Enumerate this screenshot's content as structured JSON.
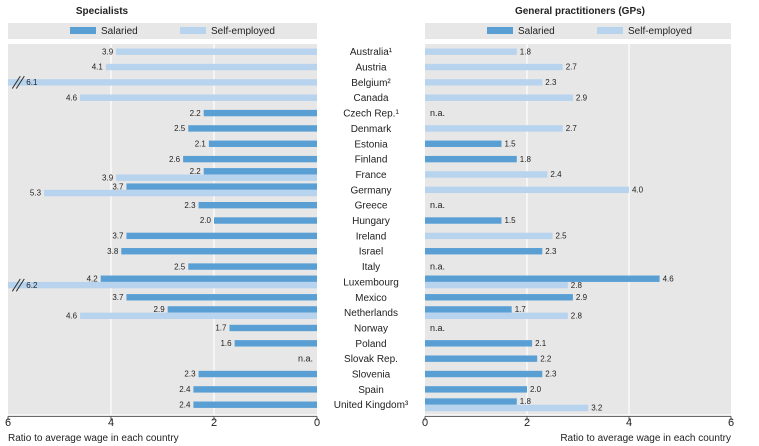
{
  "colors": {
    "salaried": "#5a9fd4",
    "self_employed": "#b7d3ee",
    "panel_bg": "#e7e7e7",
    "grid": "#ffffff",
    "axis": "#555555",
    "text": "#222222"
  },
  "chart_data": [
    {
      "type": "bar",
      "orientation": "horizontal",
      "direction": "right-to-left",
      "title": "Specialists",
      "legend": [
        "Salaried",
        "Self-employed"
      ],
      "legend_position": "top",
      "xlabel": "Ratio to average wage in each country",
      "xlim": [
        0,
        6
      ],
      "xticks": [
        "6",
        "4",
        "2",
        "0"
      ],
      "grid": true,
      "break_mark_value": 5.8,
      "categories": [
        "Australia¹",
        "Austria",
        "Belgium²",
        "Canada",
        "Czech Rep.¹",
        "Denmark",
        "Estonia",
        "Finland",
        "France",
        "Germany",
        "Greece",
        "Hungary",
        "Ireland",
        "Israel",
        "Italy",
        "Luxembourg",
        "Mexico",
        "Netherlands",
        "Norway",
        "Poland",
        "Slovak Rep.",
        "Slovenia",
        "Spain",
        "United Kingdom³"
      ],
      "series": [
        {
          "name": "Salaried",
          "values": [
            null,
            null,
            null,
            null,
            2.2,
            2.5,
            2.1,
            2.6,
            2.2,
            3.7,
            2.3,
            2.0,
            3.7,
            3.8,
            2.5,
            4.2,
            3.7,
            2.9,
            1.7,
            1.6,
            null,
            2.3,
            2.4,
            2.4
          ]
        },
        {
          "name": "Self-employed",
          "values": [
            3.9,
            4.1,
            6.1,
            4.6,
            null,
            null,
            null,
            null,
            3.9,
            5.3,
            null,
            null,
            null,
            null,
            null,
            6.2,
            null,
            4.6,
            null,
            null,
            null,
            null,
            null,
            null
          ]
        }
      ],
      "not_available": {
        "Slovak Rep.": "n.a."
      }
    },
    {
      "type": "bar",
      "orientation": "horizontal",
      "direction": "left-to-right",
      "title": "General practitioners (GPs)",
      "legend": [
        "Salaried",
        "Self-employed"
      ],
      "legend_position": "top",
      "xlabel": "Ratio to average wage  in each country",
      "xlim": [
        0,
        6
      ],
      "xticks": [
        "0",
        "2",
        "4",
        "6"
      ],
      "grid": true,
      "categories": [
        "Australia¹",
        "Austria",
        "Belgium²",
        "Canada",
        "Czech Rep.¹",
        "Denmark",
        "Estonia",
        "Finland",
        "France",
        "Germany",
        "Greece",
        "Hungary",
        "Ireland",
        "Israel",
        "Italy",
        "Luxembourg",
        "Mexico",
        "Netherlands",
        "Norway",
        "Poland",
        "Slovak Rep.",
        "Slovenia",
        "Spain",
        "United Kingdom³"
      ],
      "series": [
        {
          "name": "Salaried",
          "values": [
            null,
            null,
            null,
            null,
            null,
            null,
            1.5,
            1.8,
            null,
            null,
            null,
            1.5,
            null,
            2.3,
            null,
            4.6,
            2.9,
            1.7,
            null,
            2.1,
            2.2,
            2.3,
            2.0,
            1.8
          ]
        },
        {
          "name": "Self-employed",
          "values": [
            1.8,
            2.7,
            2.3,
            2.9,
            null,
            2.7,
            null,
            null,
            2.4,
            4.0,
            null,
            null,
            2.5,
            null,
            null,
            2.8,
            null,
            2.8,
            null,
            null,
            null,
            null,
            null,
            3.2
          ]
        }
      ],
      "not_available": {
        "Czech Rep.¹": "n.a.",
        "Greece": "n.a.",
        "Italy": "n.a.",
        "Norway": "n.a."
      }
    }
  ]
}
